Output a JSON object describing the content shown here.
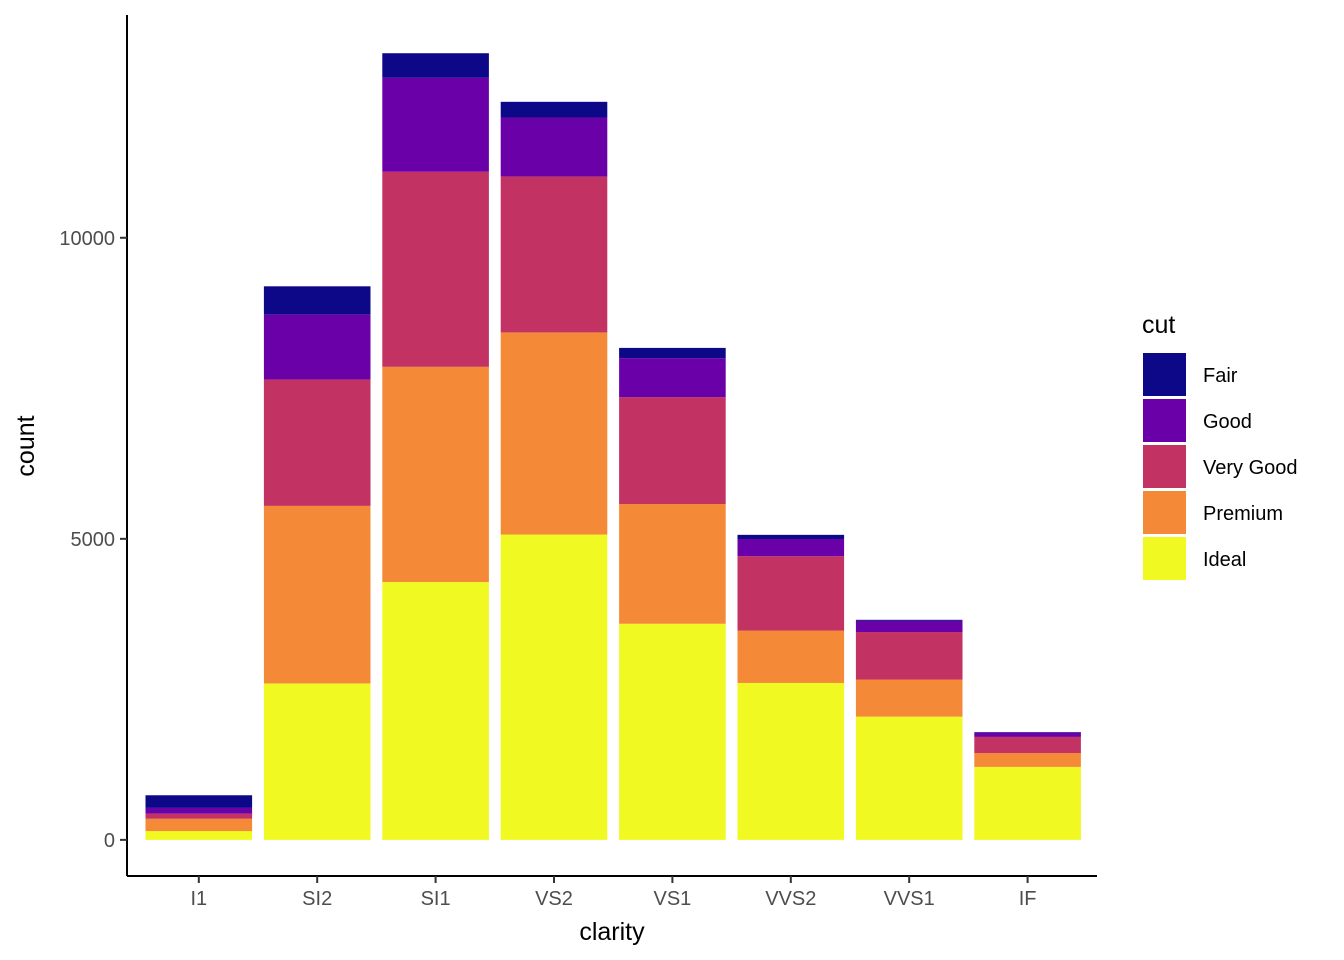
{
  "chart_data": {
    "type": "bar",
    "stacked": true,
    "xlabel": "clarity",
    "ylabel": "count",
    "categories": [
      "I1",
      "SI2",
      "SI1",
      "VS2",
      "VS1",
      "VVS2",
      "VVS1",
      "IF"
    ],
    "ylim": [
      -600,
      13700
    ],
    "yticks": [
      0,
      5000,
      10000
    ],
    "legend": {
      "title": "cut",
      "placement": "right"
    },
    "series": [
      {
        "name": "Ideal",
        "color": "#F0F921",
        "values": [
          146,
          2598,
          4282,
          5071,
          3589,
          2606,
          2047,
          1212
        ]
      },
      {
        "name": "Premium",
        "color": "#F48A37",
        "values": [
          205,
          2949,
          3575,
          3357,
          1989,
          870,
          616,
          230
        ]
      },
      {
        "name": "Very Good",
        "color": "#C23263",
        "values": [
          84,
          2100,
          3240,
          2591,
          1775,
          1235,
          789,
          268
        ]
      },
      {
        "name": "Good",
        "color": "#6A00A8",
        "values": [
          96,
          1081,
          1560,
          978,
          648,
          286,
          186,
          71
        ]
      },
      {
        "name": "Fair",
        "color": "#0D0887",
        "values": [
          210,
          466,
          408,
          261,
          170,
          69,
          17,
          9
        ]
      }
    ],
    "legend_order": [
      "Fair",
      "Good",
      "Very Good",
      "Premium",
      "Ideal"
    ],
    "grid": false
  }
}
